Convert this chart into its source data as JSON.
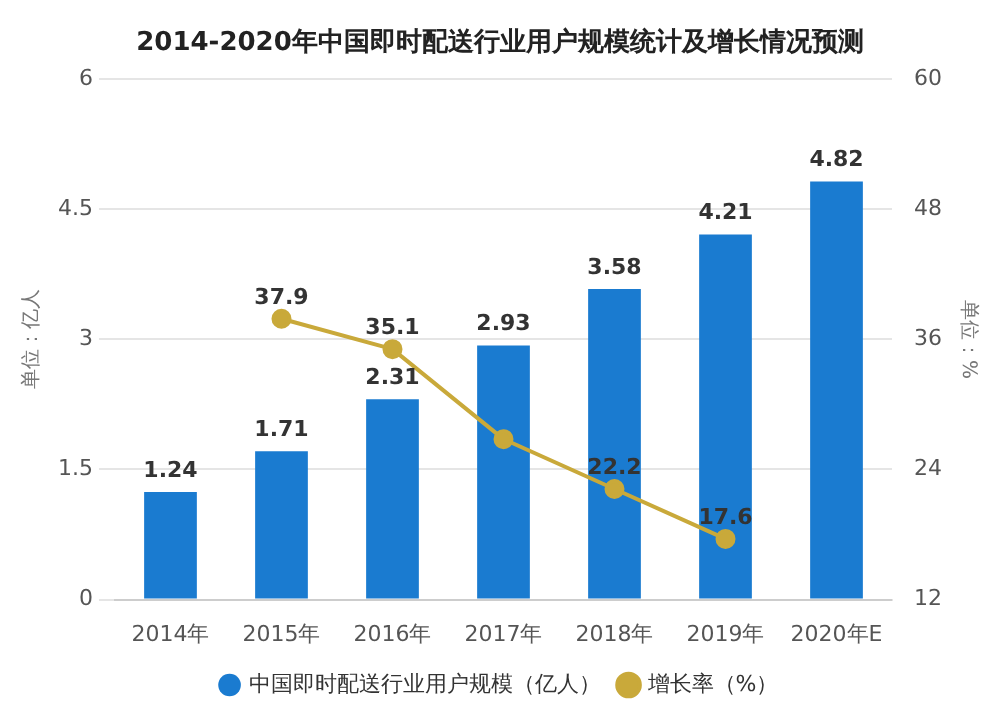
{
  "chart_data": {
    "type": "bar",
    "title": "2014-2020年中国即时配送行业用户规模统计及增长情况预测",
    "ylabel": "单位：亿人",
    "y2label": "单位：%",
    "categories": [
      "2014年",
      "2015年",
      "2016年",
      "2017年",
      "2018年",
      "2019年",
      "2020年E"
    ],
    "series": [
      {
        "name": "中国即时配送行业用户规模（亿人）",
        "color": "#1a7bd0",
        "values": [
          1.24,
          1.71,
          2.31,
          2.93,
          3.58,
          4.21,
          4.82
        ],
        "value_labels": [
          "1.24",
          "1.71",
          "2.31",
          "2.93",
          "3.58",
          "4.21",
          "4.82"
        ]
      },
      {
        "name": "增长率（%）",
        "type": "line",
        "axis": "y2",
        "color": "#c9a93a",
        "values": [
          null,
          37.9,
          35.1,
          26.8,
          22.2,
          17.6,
          null
        ],
        "value_labels": [
          null,
          "37.9",
          "35.1",
          null,
          "22.2",
          "17.6",
          null
        ]
      }
    ],
    "ylim": [
      0,
      6
    ],
    "yticks": [
      0,
      1.5,
      3,
      4.5,
      6
    ],
    "y2lim": [
      12,
      60
    ],
    "y2ticks": [
      12,
      24,
      36,
      48,
      60
    ],
    "grid": "y",
    "legend": "bottom",
    "marker": "circle",
    "line_style": "solid"
  }
}
